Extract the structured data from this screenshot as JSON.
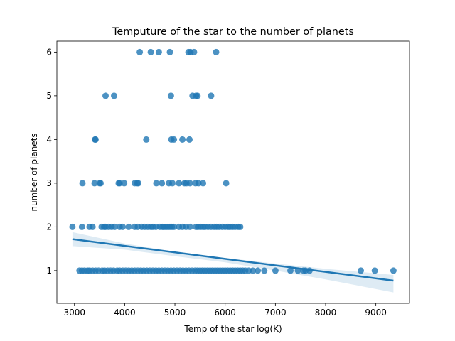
{
  "chart_data": {
    "type": "scatter",
    "title": "Temputure of the star to the number of planets",
    "xlabel": "Temp of the star log(K)",
    "ylabel": "number of planets",
    "xlim": [
      2650,
      9670
    ],
    "ylim": [
      0.25,
      6.25
    ],
    "xticks": [
      3000,
      4000,
      5000,
      6000,
      7000,
      8000,
      9000
    ],
    "yticks": [
      1,
      2,
      3,
      4,
      5,
      6
    ],
    "grid": false,
    "colors": {
      "points": "#1f77b4",
      "regression": "#1f77b4",
      "ci_band": "#1f77b4"
    },
    "series": [
      {
        "points": [
          [
            4300,
            6
          ],
          [
            4520,
            6
          ],
          [
            4680,
            6
          ],
          [
            4900,
            6
          ],
          [
            5270,
            6
          ],
          [
            5310,
            6
          ],
          [
            5380,
            6
          ],
          [
            5820,
            6
          ],
          [
            3620,
            5
          ],
          [
            3790,
            5
          ],
          [
            4920,
            5
          ],
          [
            5350,
            5
          ],
          [
            5420,
            5
          ],
          [
            5450,
            5
          ],
          [
            5720,
            5
          ],
          [
            3410,
            4
          ],
          [
            3420,
            4
          ],
          [
            4430,
            4
          ],
          [
            4930,
            4
          ],
          [
            4980,
            4
          ],
          [
            5150,
            4
          ],
          [
            5290,
            4
          ],
          [
            3160,
            3
          ],
          [
            3400,
            3
          ],
          [
            3500,
            3
          ],
          [
            3520,
            3
          ],
          [
            3880,
            3
          ],
          [
            3900,
            3
          ],
          [
            3990,
            3
          ],
          [
            4200,
            3
          ],
          [
            4250,
            3
          ],
          [
            4270,
            3
          ],
          [
            4630,
            3
          ],
          [
            4740,
            3
          ],
          [
            4880,
            3
          ],
          [
            4950,
            3
          ],
          [
            5080,
            3
          ],
          [
            5190,
            3
          ],
          [
            5230,
            3
          ],
          [
            5300,
            3
          ],
          [
            5410,
            3
          ],
          [
            5470,
            3
          ],
          [
            5560,
            3
          ],
          [
            6020,
            3
          ],
          [
            2960,
            2
          ],
          [
            3150,
            2
          ],
          [
            3300,
            2
          ],
          [
            3360,
            2
          ],
          [
            3540,
            2
          ],
          [
            3590,
            2
          ],
          [
            3620,
            2
          ],
          [
            3680,
            2
          ],
          [
            3740,
            2
          ],
          [
            3800,
            2
          ],
          [
            3900,
            2
          ],
          [
            3960,
            2
          ],
          [
            4080,
            2
          ],
          [
            4200,
            2
          ],
          [
            4260,
            2
          ],
          [
            4340,
            2
          ],
          [
            4400,
            2
          ],
          [
            4460,
            2
          ],
          [
            4520,
            2
          ],
          [
            4560,
            2
          ],
          [
            4620,
            2
          ],
          [
            4700,
            2
          ],
          [
            4750,
            2
          ],
          [
            4780,
            2
          ],
          [
            4820,
            2
          ],
          [
            4860,
            2
          ],
          [
            4900,
            2
          ],
          [
            4940,
            2
          ],
          [
            4980,
            2
          ],
          [
            5080,
            2
          ],
          [
            5150,
            2
          ],
          [
            5220,
            2
          ],
          [
            5300,
            2
          ],
          [
            5420,
            2
          ],
          [
            5460,
            2
          ],
          [
            5510,
            2
          ],
          [
            5560,
            2
          ],
          [
            5600,
            2
          ],
          [
            5660,
            2
          ],
          [
            5720,
            2
          ],
          [
            5780,
            2
          ],
          [
            5830,
            2
          ],
          [
            5880,
            2
          ],
          [
            5940,
            2
          ],
          [
            6000,
            2
          ],
          [
            6060,
            2
          ],
          [
            6100,
            2
          ],
          [
            6150,
            2
          ],
          [
            6200,
            2
          ],
          [
            6260,
            2
          ],
          [
            6300,
            2
          ],
          [
            3100,
            1
          ],
          [
            3150,
            1
          ],
          [
            3200,
            1
          ],
          [
            3260,
            1
          ],
          [
            3300,
            1
          ],
          [
            3360,
            1
          ],
          [
            3420,
            1
          ],
          [
            3480,
            1
          ],
          [
            3550,
            1
          ],
          [
            3600,
            1
          ],
          [
            3660,
            1
          ],
          [
            3720,
            1
          ],
          [
            3780,
            1
          ],
          [
            3850,
            1
          ],
          [
            3900,
            1
          ],
          [
            3960,
            1
          ],
          [
            4020,
            1
          ],
          [
            4080,
            1
          ],
          [
            4140,
            1
          ],
          [
            4200,
            1
          ],
          [
            4260,
            1
          ],
          [
            4320,
            1
          ],
          [
            4380,
            1
          ],
          [
            4440,
            1
          ],
          [
            4500,
            1
          ],
          [
            4560,
            1
          ],
          [
            4620,
            1
          ],
          [
            4680,
            1
          ],
          [
            4740,
            1
          ],
          [
            4800,
            1
          ],
          [
            4860,
            1
          ],
          [
            4920,
            1
          ],
          [
            4980,
            1
          ],
          [
            5040,
            1
          ],
          [
            5100,
            1
          ],
          [
            5160,
            1
          ],
          [
            5220,
            1
          ],
          [
            5280,
            1
          ],
          [
            5340,
            1
          ],
          [
            5400,
            1
          ],
          [
            5450,
            1
          ],
          [
            5500,
            1
          ],
          [
            5550,
            1
          ],
          [
            5600,
            1
          ],
          [
            5650,
            1
          ],
          [
            5700,
            1
          ],
          [
            5750,
            1
          ],
          [
            5800,
            1
          ],
          [
            5850,
            1
          ],
          [
            5900,
            1
          ],
          [
            5950,
            1
          ],
          [
            6000,
            1
          ],
          [
            6050,
            1
          ],
          [
            6100,
            1
          ],
          [
            6150,
            1
          ],
          [
            6200,
            1
          ],
          [
            6250,
            1
          ],
          [
            6300,
            1
          ],
          [
            6350,
            1
          ],
          [
            6400,
            1
          ],
          [
            6470,
            1
          ],
          [
            6550,
            1
          ],
          [
            6650,
            1
          ],
          [
            6780,
            1
          ],
          [
            7000,
            1
          ],
          [
            7300,
            1
          ],
          [
            7450,
            1
          ],
          [
            7560,
            1
          ],
          [
            7600,
            1
          ],
          [
            7680,
            1
          ],
          [
            8700,
            1
          ],
          [
            8980,
            1
          ],
          [
            9350,
            1
          ]
        ]
      }
    ],
    "regression": {
      "line": [
        [
          2960,
          1.72
        ],
        [
          9350,
          0.77
        ]
      ],
      "ci_upper": [
        [
          2960,
          1.88
        ],
        [
          4000,
          1.62
        ],
        [
          5000,
          1.43
        ],
        [
          6000,
          1.29
        ],
        [
          7000,
          1.16
        ],
        [
          8000,
          1.04
        ],
        [
          9350,
          0.9
        ]
      ],
      "ci_lower": [
        [
          2960,
          1.56
        ],
        [
          4000,
          1.48
        ],
        [
          5000,
          1.33
        ],
        [
          6000,
          1.19
        ],
        [
          7000,
          1.0
        ],
        [
          8000,
          0.8
        ],
        [
          9350,
          0.5
        ]
      ]
    }
  }
}
